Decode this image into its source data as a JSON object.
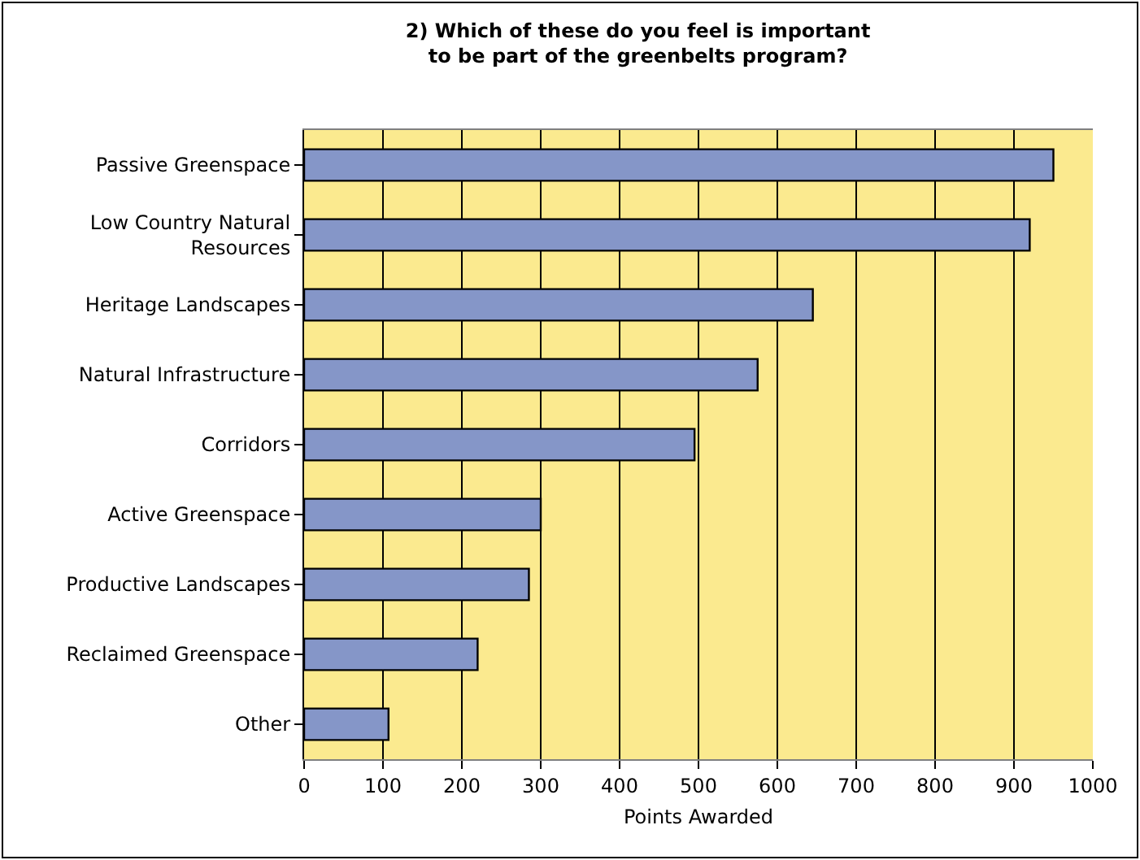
{
  "chart_data": {
    "type": "bar",
    "orientation": "horizontal",
    "title": "2) Which of these do you feel is important\nto be part of the greenbelts program?",
    "xlabel": "Points Awarded",
    "categories": [
      "Passive Greenspace",
      "Low Country Natural Resources",
      "Heritage Landscapes",
      "Natural Infrastructure",
      "Corridors",
      "Active Greenspace",
      "Productive Landscapes",
      "Reclaimed Greenspace",
      "Other"
    ],
    "values": [
      950,
      920,
      645,
      575,
      495,
      300,
      285,
      220,
      107
    ],
    "color": "#8596c8",
    "xlim": [
      0,
      1000
    ],
    "xticks": [
      0,
      100,
      200,
      300,
      400,
      500,
      600,
      700,
      800,
      900,
      1000
    ],
    "grid": "x"
  }
}
